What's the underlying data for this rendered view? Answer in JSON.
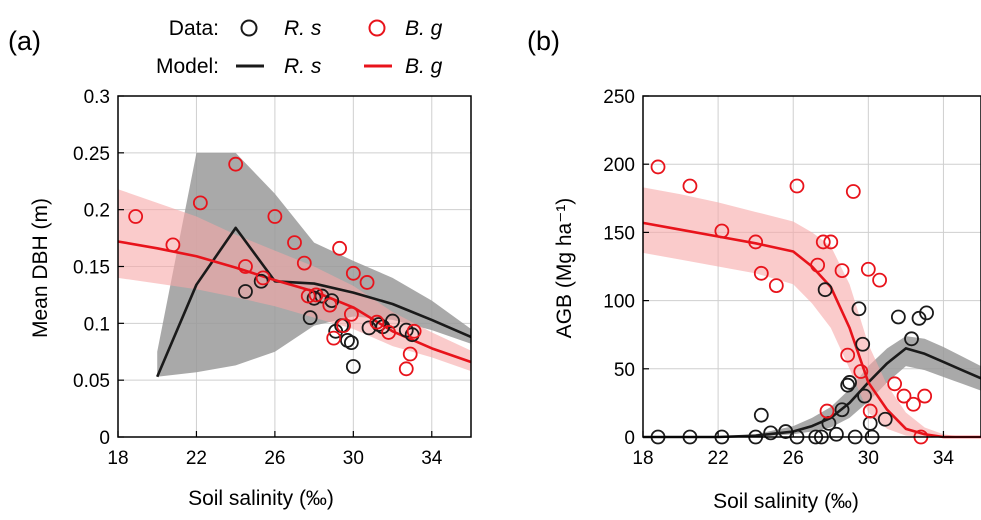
{
  "colors": {
    "rs": "#1a1a1a",
    "bg": "#e8131b",
    "rs_band": "#9a9a9a",
    "bg_band": "#f7a8a8"
  },
  "legend": {
    "data_label": "Data:",
    "model_label": "Model:",
    "rs_label": "R. s",
    "bg_label": "B. g"
  },
  "chart_data": [
    {
      "type": "scatter",
      "panel_label": "(a)",
      "xlabel": "Soil salinity (‰)",
      "ylabel": "Mean DBH (m)",
      "xlim": [
        18,
        36
      ],
      "ylim": [
        0,
        0.3
      ],
      "xticks": [
        18,
        22,
        26,
        30,
        34
      ],
      "yticks": [
        0,
        0.05,
        0.1,
        0.15,
        0.2,
        0.25,
        0.3
      ],
      "ytick_labels": [
        "0",
        "0.05",
        "0.1",
        "0.15",
        "0.2",
        "0.25",
        "0.3"
      ],
      "grid": true,
      "series": [
        {
          "name": "R. s",
          "kind": "data",
          "color_key": "rs",
          "x": [
            24.5,
            25.3,
            27.8,
            28.0,
            28.4,
            28.9,
            29.1,
            29.4,
            29.7,
            29.9,
            30.0,
            30.8,
            31.3,
            31.5,
            32.0,
            32.7,
            33.0
          ],
          "y": [
            0.128,
            0.137,
            0.105,
            0.122,
            0.124,
            0.12,
            0.093,
            0.098,
            0.085,
            0.083,
            0.062,
            0.096,
            0.099,
            0.097,
            0.102,
            0.094,
            0.09
          ]
        },
        {
          "name": "B. g",
          "kind": "data",
          "color_key": "bg",
          "x": [
            18.9,
            20.8,
            22.2,
            24.0,
            24.5,
            25.4,
            26.0,
            27.0,
            27.5,
            27.7,
            28.1,
            28.8,
            29.0,
            29.3,
            29.5,
            29.9,
            30.0,
            30.7,
            31.2,
            31.8,
            32.7,
            32.9,
            33.1
          ],
          "y": [
            0.194,
            0.169,
            0.206,
            0.24,
            0.15,
            0.14,
            0.194,
            0.171,
            0.153,
            0.124,
            0.125,
            0.116,
            0.087,
            0.166,
            0.098,
            0.108,
            0.144,
            0.136,
            0.101,
            0.092,
            0.06,
            0.073,
            0.093
          ]
        },
        {
          "name": "R. s",
          "kind": "model",
          "color_key": "rs",
          "x": [
            20,
            22,
            24,
            26,
            28,
            30,
            32,
            34,
            36
          ],
          "y": [
            0.053,
            0.134,
            0.184,
            0.137,
            0.135,
            0.127,
            0.117,
            0.103,
            0.088
          ],
          "lower": [
            0.053,
            0.057,
            0.063,
            0.075,
            0.098,
            0.106,
            0.103,
            0.094,
            0.082
          ],
          "upper": [
            0.075,
            0.25,
            0.25,
            0.214,
            0.171,
            0.155,
            0.14,
            0.12,
            0.095
          ]
        },
        {
          "name": "B. g",
          "kind": "model",
          "color_key": "bg",
          "x": [
            18,
            20,
            22,
            24,
            26,
            28,
            30,
            32,
            34,
            36
          ],
          "y": [
            0.172,
            0.166,
            0.159,
            0.149,
            0.138,
            0.128,
            0.114,
            0.093,
            0.078,
            0.066
          ],
          "lower": [
            0.14,
            0.135,
            0.13,
            0.123,
            0.115,
            0.105,
            0.095,
            0.08,
            0.07,
            0.058
          ],
          "upper": [
            0.218,
            0.206,
            0.194,
            0.178,
            0.164,
            0.15,
            0.133,
            0.11,
            0.092,
            0.076
          ]
        }
      ]
    },
    {
      "type": "scatter",
      "panel_label": "(b)",
      "xlabel": "Soil salinity (‰)",
      "ylabel": "AGB (Mg ha⁻¹)",
      "xlim": [
        18,
        36
      ],
      "ylim": [
        0,
        250
      ],
      "xticks": [
        18,
        22,
        26,
        30,
        34
      ],
      "yticks": [
        0,
        50,
        100,
        150,
        200,
        250
      ],
      "ytick_labels": [
        "0",
        "50",
        "100",
        "150",
        "200",
        "250"
      ],
      "grid": true,
      "series": [
        {
          "name": "R. s",
          "kind": "data",
          "color_key": "rs",
          "x": [
            18.8,
            20.5,
            22.2,
            24.0,
            24.3,
            24.8,
            25.6,
            26.2,
            27.2,
            27.5,
            27.7,
            27.9,
            28.3,
            28.6,
            28.9,
            29.0,
            29.3,
            29.5,
            29.7,
            29.8,
            30.1,
            30.2,
            30.9,
            31.6,
            32.3,
            32.7,
            33.1
          ],
          "y": [
            0,
            0,
            0,
            0,
            16,
            3,
            4,
            0,
            0,
            0,
            108,
            10,
            2,
            20,
            38,
            40,
            0,
            94,
            68,
            30,
            10,
            0,
            13,
            88,
            72,
            87,
            91
          ]
        },
        {
          "name": "B. g",
          "kind": "data",
          "color_key": "bg",
          "x": [
            18.8,
            20.5,
            22.2,
            24.0,
            24.3,
            25.1,
            26.2,
            27.3,
            27.6,
            28.0,
            27.8,
            28.6,
            28.9,
            29.2,
            29.6,
            30.0,
            30.1,
            30.6,
            31.4,
            31.9,
            32.4,
            32.8,
            33.0
          ],
          "y": [
            198,
            184,
            151,
            143,
            120,
            111,
            184,
            126,
            143,
            143,
            19,
            122,
            60,
            180,
            48,
            123,
            19,
            115,
            39,
            30,
            24,
            0,
            30
          ]
        },
        {
          "name": "R. s",
          "kind": "model",
          "color_key": "rs",
          "x": [
            18,
            20,
            22,
            24,
            26,
            27,
            28,
            29,
            30,
            31,
            32,
            33,
            34,
            35,
            36
          ],
          "y": [
            0,
            0,
            0,
            1,
            4,
            8,
            14,
            25,
            40,
            54,
            65,
            61,
            55,
            49,
            43
          ],
          "lower": [
            0,
            0,
            0,
            0,
            2,
            4,
            7,
            14,
            26,
            40,
            52,
            49,
            44,
            39,
            34
          ],
          "upper": [
            0,
            0,
            0,
            2,
            8,
            14,
            22,
            35,
            52,
            65,
            74,
            72,
            66,
            59,
            52
          ]
        },
        {
          "name": "B. g",
          "kind": "model",
          "color_key": "bg",
          "x": [
            18,
            20,
            22,
            24,
            26,
            27,
            28,
            29,
            30,
            31,
            32,
            33,
            34,
            35,
            36
          ],
          "y": [
            157,
            152,
            147,
            142,
            136,
            125,
            110,
            80,
            40,
            20,
            6,
            2,
            0,
            0,
            0
          ],
          "lower": [
            135,
            130,
            125,
            120,
            112,
            98,
            80,
            50,
            18,
            6,
            1,
            0,
            0,
            0,
            0
          ],
          "upper": [
            183,
            178,
            172,
            165,
            158,
            150,
            140,
            112,
            68,
            38,
            18,
            7,
            2,
            0,
            0
          ]
        }
      ]
    }
  ]
}
